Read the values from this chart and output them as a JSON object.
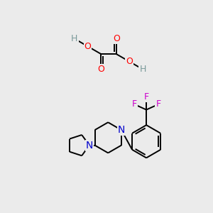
{
  "background_color": "#ebebeb",
  "figsize": [
    3.0,
    3.0
  ],
  "dpi": 100,
  "atom_colors": {
    "C": "#000000",
    "H": "#7a9a9a",
    "O": "#ff0000",
    "N": "#0000cc",
    "F": "#cc00cc"
  },
  "bond_color": "#000000",
  "bond_width": 1.4
}
